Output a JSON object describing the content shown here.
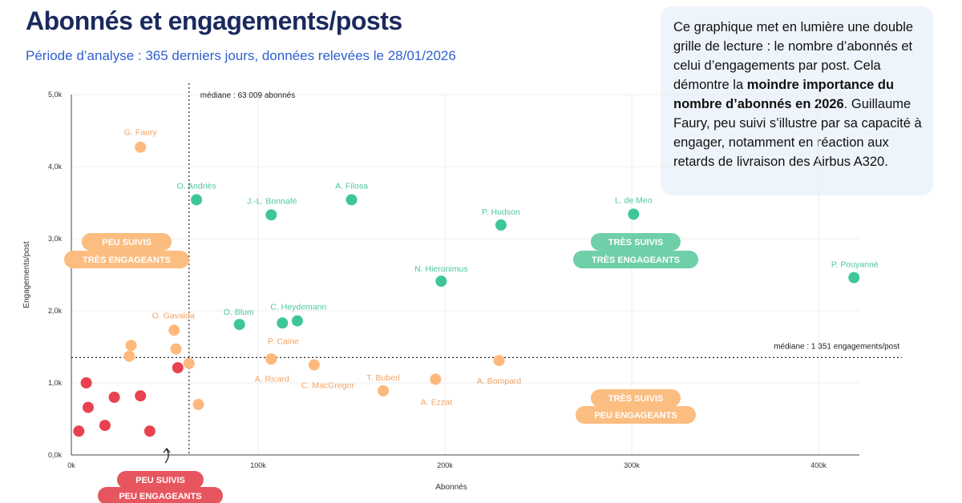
{
  "header": {
    "title": "Abonnés et engagements/posts",
    "subtitle": "Période d’analyse : 365 derniers jours, données relevées le 28/01/2026"
  },
  "note": {
    "part1": "Ce graphique met en lumière une double grille de lecture : le nombre d’abonnés et celui d’engagements par post. Cela démontre la ",
    "bold": "moindre importance du nombre d’abonnés en 2026",
    "part2": ". Guillaume Faury, peu suivi s’illustre par sa capacité à engager, notamment en réaction aux retards de livraison des Airbus A320."
  },
  "colors": {
    "green": "#3ec697",
    "orange": "#fdb97c",
    "red": "#e8414f",
    "green_label": "#4cc89d",
    "orange_label": "#f4a261",
    "green_badge": "#6fcfa8",
    "orange_badge": "#fbbd80",
    "red_badge": "#e7565f"
  },
  "chart_data": {
    "type": "scatter",
    "xlabel": "Abonnés",
    "ylabel": "Engagements/post",
    "xlim": [
      0,
      425000
    ],
    "ylim": [
      0,
      5000
    ],
    "x_ticks": [
      {
        "value": 0,
        "label": "0k"
      },
      {
        "value": 100000,
        "label": "100k"
      },
      {
        "value": 200000,
        "label": "200k"
      },
      {
        "value": 300000,
        "label": "300k"
      },
      {
        "value": 400000,
        "label": "400k"
      }
    ],
    "y_ticks": [
      {
        "value": 0,
        "label": "0,0k"
      },
      {
        "value": 1000,
        "label": "1,0k"
      },
      {
        "value": 2000,
        "label": "2,0k"
      },
      {
        "value": 3000,
        "label": "3,0k"
      },
      {
        "value": 4000,
        "label": "4,0k"
      },
      {
        "value": 5000,
        "label": "5,0k"
      }
    ],
    "median_x": {
      "value": 63009,
      "label": "médiane : 63 009 abonnés"
    },
    "median_y": {
      "value": 1351,
      "label": "médiane : 1 351 engagements/post"
    },
    "points": [
      {
        "name": "G. Faury",
        "x": 37000,
        "y": 4270,
        "group": "orange"
      },
      {
        "name": "O. Andriès",
        "x": 67000,
        "y": 3540,
        "group": "green"
      },
      {
        "name": "J.-L. Bonnafé",
        "x": 107000,
        "y": 3330,
        "group": "green"
      },
      {
        "name": "A. Filosa",
        "x": 150000,
        "y": 3540,
        "group": "green"
      },
      {
        "name": "P. Hudson",
        "x": 230000,
        "y": 3190,
        "group": "green"
      },
      {
        "name": "L. de Meo",
        "x": 301000,
        "y": 3340,
        "group": "green"
      },
      {
        "name": "N. Hieronimus",
        "x": 198000,
        "y": 2410,
        "group": "green"
      },
      {
        "name": "P. Pouyanné",
        "x": 419000,
        "y": 2460,
        "group": "green"
      },
      {
        "name": "O. Blum",
        "x": 90000,
        "y": 1810,
        "group": "green"
      },
      {
        "name": "C. Heydemann",
        "x": 113000,
        "y": 1830,
        "group": "green"
      },
      {
        "name": "",
        "x": 121000,
        "y": 1860,
        "group": "green"
      },
      {
        "name": "O. Gavalda",
        "x": 55000,
        "y": 1730,
        "group": "orange"
      },
      {
        "name": "P. Caine",
        "x": 107000,
        "y": 1330,
        "group": "orange"
      },
      {
        "name": "A. Ricard",
        "x": 107000,
        "y": 1330,
        "group": "orange"
      },
      {
        "name": "C. MacGregor",
        "x": 130000,
        "y": 1250,
        "group": "orange"
      },
      {
        "name": "T. Buberl",
        "x": 167000,
        "y": 890,
        "group": "orange"
      },
      {
        "name": "A. Ezzat",
        "x": 195000,
        "y": 1050,
        "group": "orange"
      },
      {
        "name": "A. Bompard",
        "x": 229000,
        "y": 1310,
        "group": "orange"
      },
      {
        "name": "",
        "x": 32000,
        "y": 1520,
        "group": "orange"
      },
      {
        "name": "",
        "x": 31000,
        "y": 1370,
        "group": "orange"
      },
      {
        "name": "",
        "x": 56000,
        "y": 1470,
        "group": "orange"
      },
      {
        "name": "",
        "x": 63000,
        "y": 1270,
        "group": "orange"
      },
      {
        "name": "",
        "x": 68000,
        "y": 700,
        "group": "orange"
      },
      {
        "name": "",
        "x": 57000,
        "y": 1210,
        "group": "red"
      },
      {
        "name": "",
        "x": 8000,
        "y": 1000,
        "group": "red"
      },
      {
        "name": "",
        "x": 9000,
        "y": 660,
        "group": "red"
      },
      {
        "name": "",
        "x": 23000,
        "y": 800,
        "group": "red"
      },
      {
        "name": "",
        "x": 37000,
        "y": 820,
        "group": "red"
      },
      {
        "name": "",
        "x": 18000,
        "y": 410,
        "group": "red"
      },
      {
        "name": "",
        "x": 4000,
        "y": 330,
        "group": "red"
      },
      {
        "name": "",
        "x": 42000,
        "y": 330,
        "group": "red"
      }
    ],
    "quadrants": [
      {
        "line1": "PEU SUIVIS",
        "line2": "TRÈS ENGAGEANTS",
        "color": "orange"
      },
      {
        "line1": "TRÈS SUIVIS",
        "line2": "TRÈS ENGAGEANTS",
        "color": "green"
      },
      {
        "line1": "TRÈS SUIVIS",
        "line2": "PEU ENGAGEANTS",
        "color": "orange"
      },
      {
        "line1": "PEU SUIVIS",
        "line2": "PEU ENGAGEANTS",
        "color": "red"
      }
    ]
  }
}
